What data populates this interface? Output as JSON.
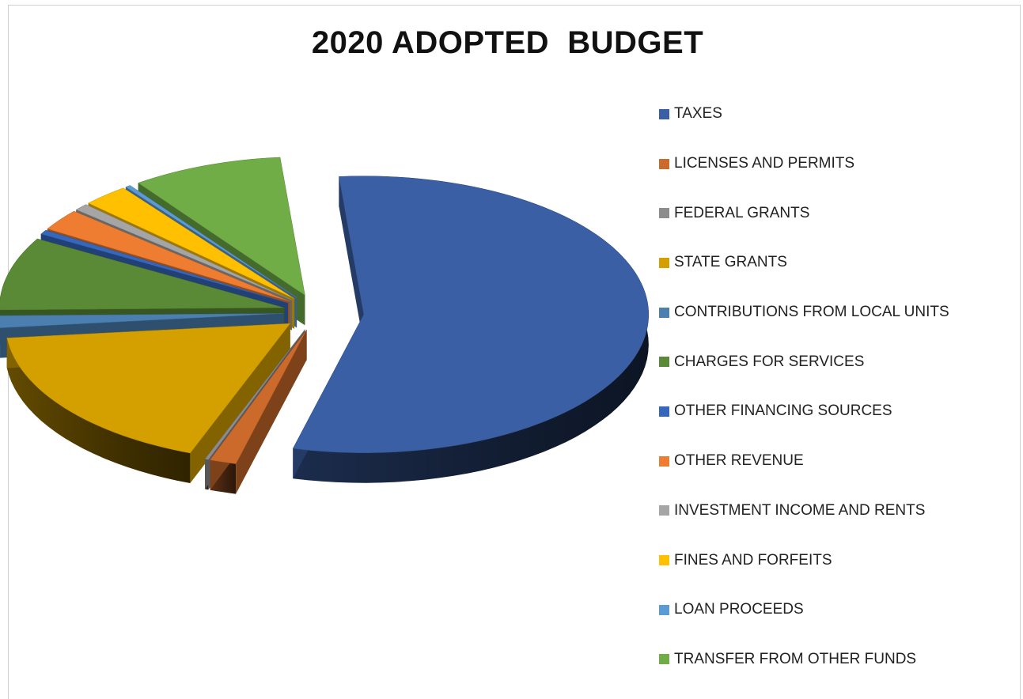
{
  "chart_data": {
    "type": "pie",
    "title": "2020 ADOPTED  BUDGET",
    "categories": [
      "TAXES",
      "LICENSES AND PERMITS",
      "FEDERAL GRANTS",
      "STATE GRANTS",
      "CONTRIBUTIONS FROM LOCAL UNITS",
      "CHARGES FOR SERVICES",
      "OTHER FINANCING SOURCES",
      "OTHER REVENUE",
      "INVESTMENT INCOME AND RENTS",
      "FINES AND FORFEITS",
      "LOAN PROCEEDS",
      "TRANSFER FROM OTHER FUNDS"
    ],
    "values": [
      55.0,
      1.5,
      0.2,
      17.5,
      1.4,
      8.5,
      0.5,
      2.5,
      0.8,
      2.6,
      0.3,
      8.5
    ],
    "colors": [
      "#3a5fa4",
      "#cc6a2c",
      "#8c8c8c",
      "#d4a000",
      "#4a7fb0",
      "#5a8a35",
      "#3567bd",
      "#ee7d31",
      "#a5a5a5",
      "#fec000",
      "#5b9bd5",
      "#70ad47"
    ],
    "legend_position": "right",
    "style": "3d-exploded"
  }
}
